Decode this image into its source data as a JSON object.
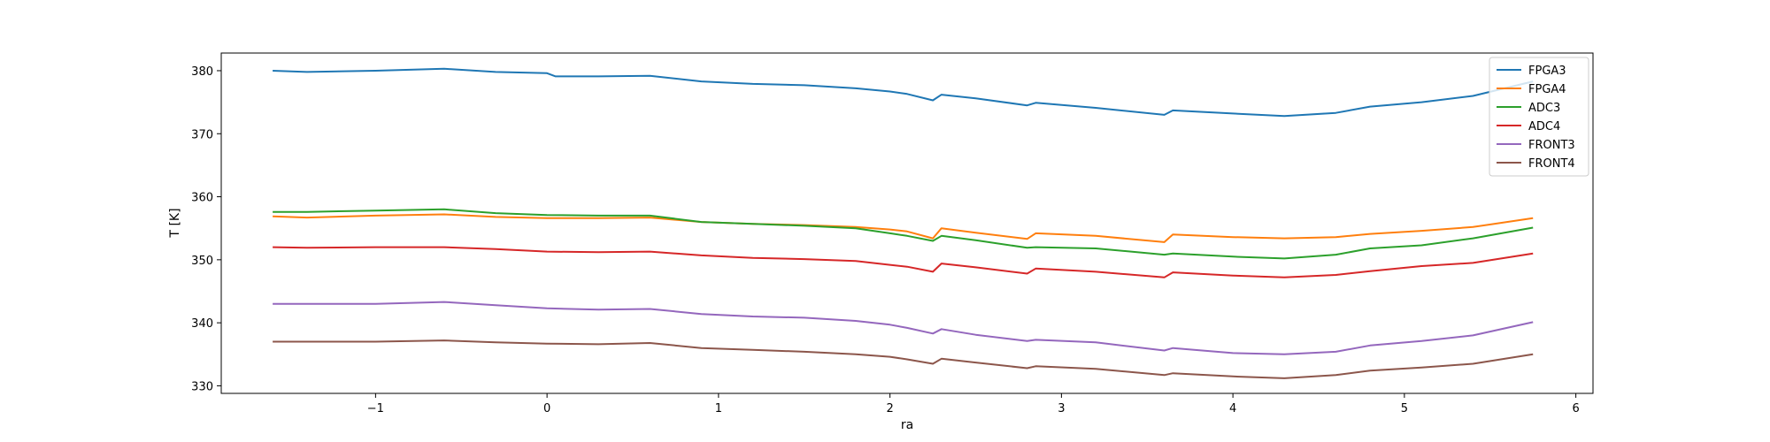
{
  "chart_data": {
    "type": "line",
    "title": "",
    "xlabel": "ra",
    "ylabel": "T [K]",
    "xlim": [
      -1.9,
      6.1
    ],
    "ylim": [
      328.8,
      382.8
    ],
    "xticks": [
      -1,
      0,
      1,
      2,
      3,
      4,
      5,
      6
    ],
    "xtick_labels": [
      "−1",
      "0",
      "1",
      "2",
      "3",
      "4",
      "5",
      "6"
    ],
    "yticks": [
      330,
      340,
      350,
      360,
      370,
      380
    ],
    "ytick_labels": [
      "330",
      "340",
      "350",
      "360",
      "370",
      "380"
    ],
    "grid": false,
    "legend": "top-right",
    "series": [
      {
        "name": "FPGA3",
        "color": "#1f77b4",
        "x": [
          -1.6,
          -1.4,
          -1.0,
          -0.6,
          -0.3,
          0.0,
          0.05,
          0.3,
          0.6,
          0.9,
          1.2,
          1.5,
          1.8,
          2.0,
          2.1,
          2.25,
          2.3,
          2.5,
          2.8,
          2.85,
          3.2,
          3.6,
          3.65,
          4.0,
          4.3,
          4.6,
          4.8,
          5.1,
          5.4,
          5.75
        ],
        "y": [
          380.0,
          379.8,
          380.0,
          380.3,
          379.8,
          379.6,
          379.1,
          379.1,
          379.2,
          378.3,
          377.9,
          377.7,
          377.2,
          376.7,
          376.3,
          375.3,
          376.2,
          375.6,
          374.5,
          374.9,
          374.1,
          373.0,
          373.7,
          373.2,
          372.8,
          373.3,
          374.3,
          375.0,
          376.0,
          378.3
        ]
      },
      {
        "name": "FPGA4",
        "color": "#ff7f0e",
        "x": [
          -1.6,
          -1.4,
          -1.0,
          -0.6,
          -0.3,
          0.0,
          0.3,
          0.6,
          0.9,
          1.2,
          1.5,
          1.8,
          2.0,
          2.1,
          2.25,
          2.3,
          2.5,
          2.8,
          2.85,
          3.2,
          3.6,
          3.65,
          4.0,
          4.3,
          4.6,
          4.8,
          5.1,
          5.4,
          5.75
        ],
        "y": [
          356.9,
          356.7,
          357.0,
          357.2,
          356.8,
          356.6,
          356.6,
          356.7,
          356.0,
          355.7,
          355.5,
          355.2,
          354.8,
          354.5,
          353.4,
          355.0,
          354.3,
          353.3,
          354.2,
          353.8,
          352.8,
          354.0,
          353.6,
          353.4,
          353.6,
          354.1,
          354.6,
          355.2,
          356.6
        ]
      },
      {
        "name": "ADC3",
        "color": "#2ca02c",
        "x": [
          -1.6,
          -1.4,
          -1.0,
          -0.6,
          -0.3,
          0.0,
          0.3,
          0.6,
          0.9,
          1.2,
          1.5,
          1.8,
          2.0,
          2.1,
          2.25,
          2.3,
          2.5,
          2.8,
          2.85,
          3.2,
          3.6,
          3.65,
          4.0,
          4.3,
          4.6,
          4.8,
          5.1,
          5.4,
          5.75
        ],
        "y": [
          357.6,
          357.6,
          357.8,
          358.0,
          357.4,
          357.1,
          357.0,
          357.0,
          356.0,
          355.7,
          355.4,
          355.0,
          354.2,
          353.8,
          353.0,
          353.8,
          353.1,
          351.9,
          352.0,
          351.8,
          350.8,
          351.0,
          350.5,
          350.2,
          350.8,
          351.8,
          352.3,
          353.4,
          355.1
        ]
      },
      {
        "name": "ADC4",
        "color": "#d62728",
        "x": [
          -1.6,
          -1.4,
          -1.0,
          -0.6,
          -0.3,
          0.0,
          0.3,
          0.6,
          0.9,
          1.2,
          1.5,
          1.8,
          2.0,
          2.1,
          2.25,
          2.3,
          2.5,
          2.8,
          2.85,
          3.2,
          3.6,
          3.65,
          4.0,
          4.3,
          4.6,
          4.8,
          5.1,
          5.4,
          5.75
        ],
        "y": [
          352.0,
          351.9,
          352.0,
          352.0,
          351.7,
          351.3,
          351.2,
          351.3,
          350.7,
          350.3,
          350.1,
          349.8,
          349.2,
          348.9,
          348.1,
          349.4,
          348.8,
          347.8,
          348.6,
          348.1,
          347.2,
          348.0,
          347.5,
          347.2,
          347.6,
          348.2,
          349.0,
          349.5,
          351.0
        ]
      },
      {
        "name": "FRONT3",
        "color": "#9467bd",
        "x": [
          -1.6,
          -1.4,
          -1.0,
          -0.6,
          -0.3,
          0.0,
          0.3,
          0.6,
          0.9,
          1.2,
          1.5,
          1.8,
          2.0,
          2.1,
          2.25,
          2.3,
          2.5,
          2.8,
          2.85,
          3.2,
          3.6,
          3.65,
          4.0,
          4.3,
          4.6,
          4.8,
          5.1,
          5.4,
          5.75
        ],
        "y": [
          343.0,
          343.0,
          343.0,
          343.3,
          342.8,
          342.3,
          342.1,
          342.2,
          341.4,
          341.0,
          340.8,
          340.3,
          339.7,
          339.2,
          338.3,
          339.0,
          338.1,
          337.1,
          337.3,
          336.9,
          335.6,
          336.0,
          335.2,
          335.0,
          335.4,
          336.4,
          337.1,
          338.0,
          340.1
        ]
      },
      {
        "name": "FRONT4",
        "color": "#8c564b",
        "x": [
          -1.6,
          -1.4,
          -1.0,
          -0.6,
          -0.3,
          0.0,
          0.3,
          0.6,
          0.9,
          1.2,
          1.5,
          1.8,
          2.0,
          2.1,
          2.25,
          2.3,
          2.5,
          2.8,
          2.85,
          3.2,
          3.6,
          3.65,
          4.0,
          4.3,
          4.6,
          4.8,
          5.1,
          5.4,
          5.75
        ],
        "y": [
          337.0,
          337.0,
          337.0,
          337.2,
          336.9,
          336.7,
          336.6,
          336.8,
          336.0,
          335.7,
          335.4,
          335.0,
          334.6,
          334.2,
          333.5,
          334.3,
          333.7,
          332.8,
          333.1,
          332.7,
          331.7,
          332.0,
          331.5,
          331.2,
          331.7,
          332.4,
          332.9,
          333.5,
          335.0
        ]
      }
    ]
  }
}
